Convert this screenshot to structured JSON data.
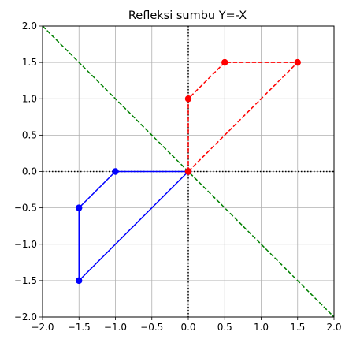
{
  "chart_data": {
    "type": "line",
    "title": "Refleksi sumbu Y=-X",
    "xlabel": "",
    "ylabel": "",
    "xlim": [
      -2.0,
      2.0
    ],
    "ylim": [
      -2.0,
      2.0
    ],
    "grid": true,
    "x_ticks": [
      -2.0,
      -1.5,
      -1.0,
      -0.5,
      0.0,
      0.5,
      1.0,
      1.5,
      2.0
    ],
    "y_ticks": [
      -2.0,
      -1.5,
      -1.0,
      -0.5,
      0.0,
      0.5,
      1.0,
      1.5,
      2.0
    ],
    "x_tick_labels": [
      "−2.0",
      "−1.5",
      "−1.0",
      "−0.5",
      "0.0",
      "0.5",
      "1.0",
      "1.5",
      "2.0"
    ],
    "y_tick_labels": [
      "−2.0",
      "−1.5",
      "−1.0",
      "−0.5",
      "0.0",
      "0.5",
      "1.0",
      "1.5",
      "2.0"
    ],
    "series": [
      {
        "color": "#0000ff",
        "style": "solid",
        "marker": "circle",
        "x": [
          0,
          -1,
          -1.5,
          -1.5,
          0
        ],
        "y": [
          0,
          0,
          -0.5,
          -1.5,
          0
        ]
      },
      {
        "color": "#ff0000",
        "style": "dashed",
        "marker": "circle",
        "x": [
          0,
          0,
          0.5,
          1.5,
          0
        ],
        "y": [
          0,
          1,
          1.5,
          1.5,
          0
        ]
      }
    ],
    "reference_lines": [
      {
        "kind": "diagonal",
        "equation": "y=-x",
        "color": "#008000",
        "style": "dashed"
      },
      {
        "kind": "horizontal",
        "equation": "y=0",
        "color": "#000000",
        "style": "dotted"
      },
      {
        "kind": "vertical",
        "equation": "x=0",
        "color": "#000000",
        "style": "dotted"
      }
    ]
  }
}
